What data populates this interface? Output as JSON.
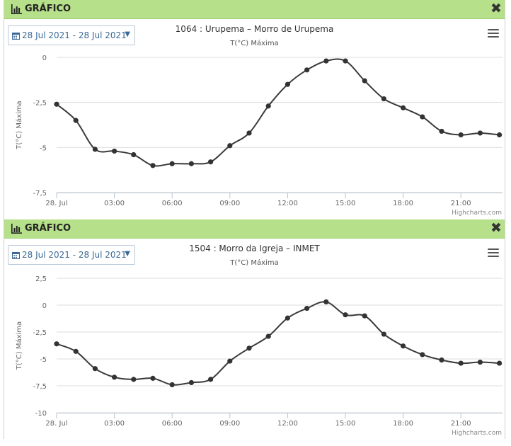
{
  "charts": [
    {
      "header": "GRÁFICO",
      "date_range": "28 Jul 2021 - 28 Jul 2021",
      "title": "1064 : Urupema – Morro de Urupema",
      "subtitle": "T(°C) Máxima",
      "credits": "Highcharts.com"
    },
    {
      "header": "GRÁFICO",
      "date_range": "28 Jul 2021 - 28 Jul 2021",
      "title": "1504 : Morro da Igreja – INMET",
      "subtitle": "T(°C) Máxima",
      "credits": "Highcharts.com"
    }
  ],
  "chart_data": [
    {
      "type": "line",
      "title": "1064 : Urupema – Morro de Urupema",
      "subtitle": "T(°C) Máxima",
      "xlabel": "",
      "ylabel": "T(°C) Máxima",
      "x": [
        "00:00",
        "01:00",
        "02:00",
        "03:00",
        "04:00",
        "05:00",
        "06:00",
        "07:00",
        "08:00",
        "09:00",
        "10:00",
        "11:00",
        "12:00",
        "13:00",
        "14:00",
        "15:00",
        "16:00",
        "17:00",
        "18:00",
        "19:00",
        "20:00",
        "21:00",
        "22:00",
        "23:00"
      ],
      "xticks": [
        "28. Jul",
        "03:00",
        "06:00",
        "09:00",
        "12:00",
        "15:00",
        "18:00",
        "21:00"
      ],
      "yticks": [
        "0",
        "-2,5",
        "-5",
        "-7,5"
      ],
      "ylim": [
        -7.5,
        0
      ],
      "series": [
        {
          "values": [
            -2.6,
            -3.5,
            -5.1,
            -5.2,
            -5.4,
            -6.0,
            -5.9,
            -5.9,
            -5.8,
            -4.9,
            -4.2,
            -2.7,
            -1.5,
            -0.7,
            -0.2,
            -0.2,
            -1.3,
            -2.3,
            -2.8,
            -3.3,
            -4.1,
            -4.3,
            -4.2,
            -4.3
          ]
        }
      ],
      "grid": true,
      "legend": "none"
    },
    {
      "type": "line",
      "title": "1504 : Morro da Igreja – INMET",
      "subtitle": "T(°C) Máxima",
      "xlabel": "",
      "ylabel": "T(°C) Máxima",
      "x": [
        "00:00",
        "01:00",
        "02:00",
        "03:00",
        "04:00",
        "05:00",
        "06:00",
        "07:00",
        "08:00",
        "09:00",
        "10:00",
        "11:00",
        "12:00",
        "13:00",
        "14:00",
        "15:00",
        "16:00",
        "17:00",
        "18:00",
        "19:00",
        "20:00",
        "21:00",
        "22:00",
        "23:00"
      ],
      "xticks": [
        "28. Jul",
        "03:00",
        "06:00",
        "09:00",
        "12:00",
        "15:00",
        "18:00",
        "21:00"
      ],
      "yticks": [
        "2,5",
        "0",
        "-2,5",
        "-5",
        "-7,5",
        "-10"
      ],
      "ylim": [
        -10,
        2.5
      ],
      "series": [
        {
          "values": [
            -3.6,
            -4.3,
            -5.9,
            -6.7,
            -6.9,
            -6.8,
            -7.4,
            -7.2,
            -6.9,
            -5.2,
            -4.0,
            -2.9,
            -1.2,
            -0.3,
            0.3,
            -0.9,
            -1.0,
            -2.7,
            -3.8,
            -4.6,
            -5.1,
            -5.4,
            -5.3,
            -5.4
          ]
        }
      ],
      "grid": true,
      "legend": "none"
    }
  ]
}
